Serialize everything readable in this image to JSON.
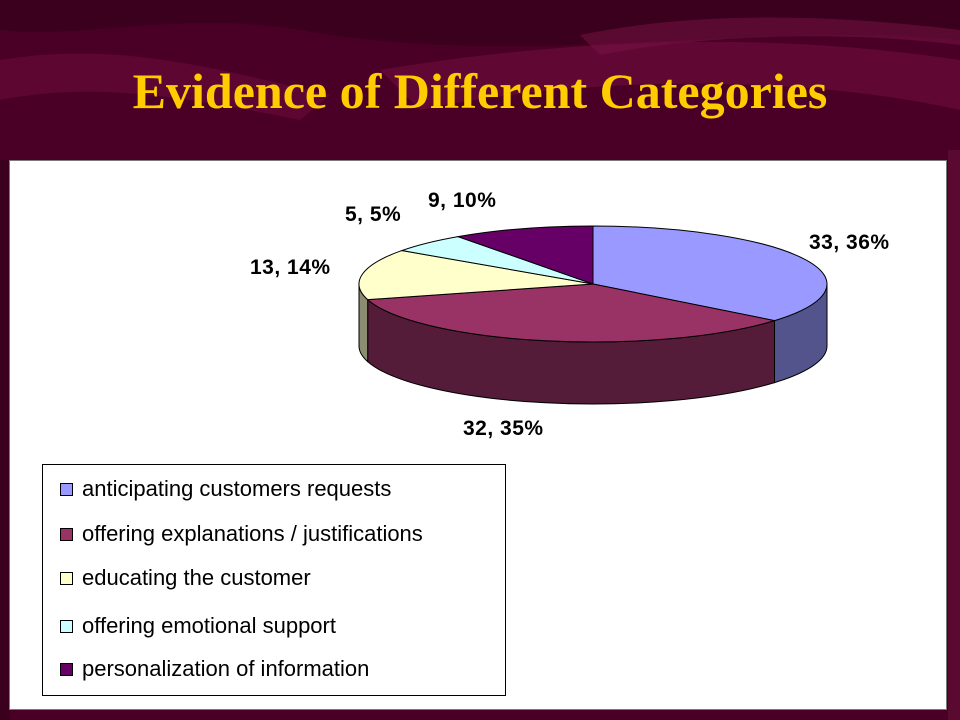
{
  "slide": {
    "title": "Evidence of Different Categories"
  },
  "colors": {
    "background": "#4a0026",
    "title": "#ffcc00"
  },
  "chart_data": {
    "type": "pie",
    "style": "3d",
    "legend_position": "bottom-left",
    "categories": [
      "anticipating customers requests",
      "offering explanations / justifications",
      "educating the customer",
      "offering emotional support",
      "personalization of information"
    ],
    "values": [
      33,
      32,
      13,
      5,
      9
    ],
    "percents": [
      36,
      35,
      14,
      5,
      10
    ],
    "data_labels": [
      "33, 36%",
      "32, 35%",
      "13, 14%",
      "5, 5%",
      "9, 10%"
    ],
    "colors": [
      "#9999ff",
      "#993366",
      "#ffffcc",
      "#ccffff",
      "#660066"
    ]
  }
}
